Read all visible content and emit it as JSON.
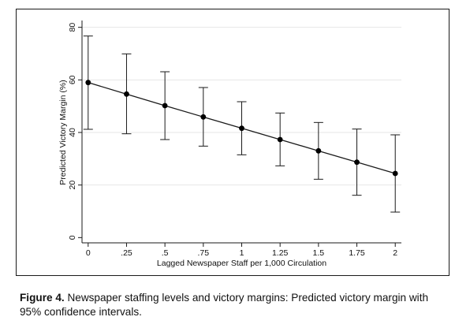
{
  "chart_data": {
    "type": "line",
    "title": "",
    "xlabel": "Lagged Newspaper Staff per 1,000 Circulation",
    "ylabel": "Predicted Victory Margin (%)",
    "x": [
      0,
      0.25,
      0.5,
      0.75,
      1,
      1.25,
      1.5,
      1.75,
      2
    ],
    "x_tick_labels": [
      "0",
      ".25",
      ".5",
      ".75",
      "1",
      "1.25",
      "1.5",
      "1.75",
      "2"
    ],
    "y_ticks": [
      0,
      20,
      40,
      60,
      80
    ],
    "y_tick_labels": [
      "0",
      "20",
      "40",
      "60",
      "80"
    ],
    "xlim": [
      -0.04,
      2.04
    ],
    "ylim": [
      -2,
      82
    ],
    "grid": "horizontal",
    "legend": "none",
    "series": [
      {
        "values": [
          59,
          54.6,
          50.2,
          45.9,
          41.6,
          37.3,
          33.0,
          28.7,
          24.4
        ],
        "ci_lower": [
          41.2,
          39.5,
          37.3,
          34.8,
          31.5,
          27.3,
          22.2,
          16.1,
          9.7
        ],
        "ci_upper": [
          76.7,
          69.9,
          63.1,
          57.1,
          51.7,
          47.4,
          43.8,
          41.3,
          39.1
        ],
        "color": "#1a1a1a"
      }
    ],
    "colors": {
      "line": "#1a1a1a",
      "grid": "#e6e6e6",
      "axis": "#1a1a1a",
      "marker": "#000000"
    }
  },
  "caption": {
    "label": "Figure 4.",
    "text": "Newspaper staffing levels and victory margins: Predicted victory margin with 95% confidence intervals."
  }
}
